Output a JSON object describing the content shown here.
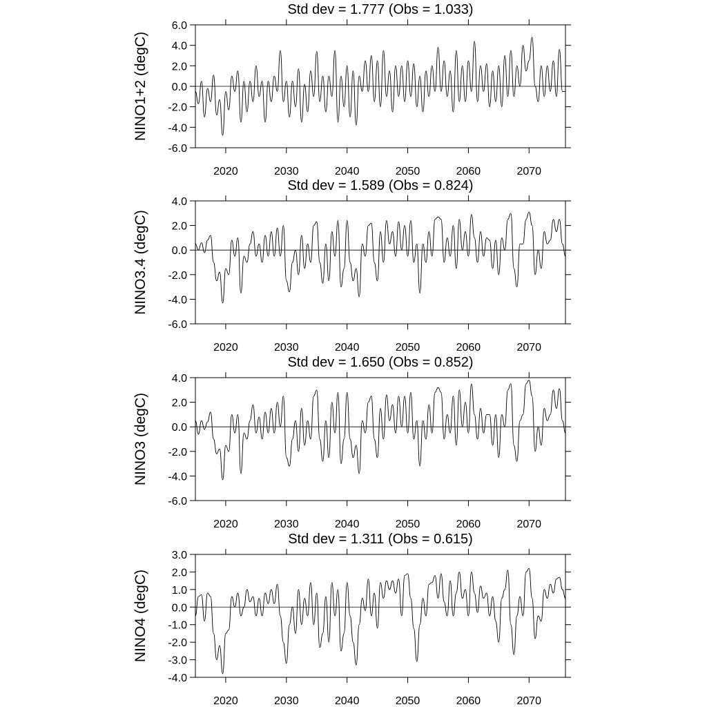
{
  "chart_data": [
    {
      "type": "line",
      "title": "Std dev = 1.777 (Obs = 1.033)",
      "ylabel": "NINO1+2 (degC)",
      "color": "#000000",
      "hline": 0,
      "xlim": [
        2015,
        2076
      ],
      "xticks": [
        2020,
        2030,
        2040,
        2050,
        2060,
        2070
      ],
      "ylim": [
        -6,
        6
      ],
      "yticks": [
        {
          "value": -6,
          "label": "-6.0"
        },
        {
          "value": -4,
          "label": "-4.0"
        },
        {
          "value": -2,
          "label": "-2.0"
        },
        {
          "value": 0,
          "label": "0.0"
        },
        {
          "value": 2,
          "label": "2.0"
        },
        {
          "value": 4,
          "label": "4.0"
        },
        {
          "value": 6,
          "label": "6.0"
        }
      ],
      "x": [
        2015,
        2015.5,
        2016,
        2016.5,
        2017,
        2017.5,
        2018,
        2018.5,
        2019,
        2019.5,
        2020,
        2020.5,
        2021,
        2021.5,
        2022,
        2022.5,
        2023,
        2023.5,
        2024,
        2024.5,
        2025,
        2025.5,
        2026,
        2026.5,
        2027,
        2027.5,
        2028,
        2028.5,
        2029,
        2029.5,
        2030,
        2030.5,
        2031,
        2031.5,
        2032,
        2032.5,
        2033,
        2033.5,
        2034,
        2034.5,
        2035,
        2035.5,
        2036,
        2036.5,
        2037,
        2037.5,
        2038,
        2038.5,
        2039,
        2039.5,
        2040,
        2040.5,
        2041,
        2041.5,
        2042,
        2042.5,
        2043,
        2043.5,
        2044,
        2044.5,
        2045,
        2045.5,
        2046,
        2046.5,
        2047,
        2047.5,
        2048,
        2048.5,
        2049,
        2049.5,
        2050,
        2050.5,
        2051,
        2051.5,
        2052,
        2052.5,
        2053,
        2053.5,
        2054,
        2054.5,
        2055,
        2055.5,
        2056,
        2056.5,
        2057,
        2057.5,
        2058,
        2058.5,
        2059,
        2059.5,
        2060,
        2060.5,
        2061,
        2061.5,
        2062,
        2062.5,
        2063,
        2063.5,
        2064,
        2064.5,
        2065,
        2065.5,
        2066,
        2066.5,
        2067,
        2067.5,
        2068,
        2068.5,
        2069,
        2069.5,
        2070,
        2070.5,
        2071,
        2071.5,
        2072,
        2072.5,
        2073,
        2073.5,
        2074,
        2074.5,
        2075,
        2075.5,
        2076
      ],
      "values": [
        -0.5,
        -1.7,
        0.5,
        -3.0,
        -0.2,
        -1.5,
        1.1,
        -2.8,
        -1.3,
        -4.8,
        -0.5,
        -2.3,
        1.0,
        -0.5,
        1.5,
        -3.5,
        0.5,
        -2.5,
        0.5,
        -1.5,
        2.0,
        -1.0,
        0.5,
        -3.5,
        0.5,
        -1.5,
        1.0,
        -0.5,
        3.5,
        -1.5,
        0.5,
        -3.0,
        0.5,
        -2.0,
        1.7,
        -3.5,
        0.2,
        -2.5,
        1.5,
        -1.0,
        3.4,
        -1.5,
        1.0,
        -2.5,
        1.0,
        -1.0,
        3.5,
        -3.5,
        1.0,
        -2.0,
        2.0,
        -3.0,
        1.5,
        -3.8,
        1.0,
        -0.5,
        2.5,
        -0.5,
        3.0,
        -1.5,
        2.5,
        -2.0,
        3.5,
        -1.0,
        1.5,
        -2.5,
        2.0,
        -1.0,
        2.0,
        -1.5,
        2.5,
        -1.0,
        2.2,
        -2.0,
        1.0,
        -2.5,
        1.5,
        -1.0,
        2.0,
        -0.5,
        3.8,
        -0.5,
        2.5,
        -1.0,
        1.5,
        -2.5,
        3.5,
        -1.5,
        2.0,
        -1.5,
        2.5,
        -0.5,
        4.4,
        -1.5,
        2.0,
        -0.5,
        2.2,
        -2.0,
        1.5,
        -1.5,
        2.0,
        -2.0,
        3.0,
        -1.0,
        3.5,
        -1.0,
        2.0,
        0.0,
        4.0,
        1.5,
        2.5,
        4.8,
        0.0,
        -1.5,
        2.0,
        -1.0,
        2.0,
        -0.5,
        2.5,
        -1.0,
        3.6,
        -0.5,
        -0.5
      ]
    },
    {
      "type": "line",
      "title": "Std dev = 1.589 (Obs = 0.824)",
      "ylabel": "NINO3.4 (degC)",
      "color": "#000000",
      "hline": 0,
      "xlim": [
        2015,
        2076
      ],
      "xticks": [
        2020,
        2030,
        2040,
        2050,
        2060,
        2070
      ],
      "ylim": [
        -6,
        4
      ],
      "yticks": [
        {
          "value": -6,
          "label": "-6.0"
        },
        {
          "value": -4,
          "label": "-4.0"
        },
        {
          "value": -2,
          "label": "-2.0"
        },
        {
          "value": 0,
          "label": "0.0"
        },
        {
          "value": 2,
          "label": "2.0"
        },
        {
          "value": 4,
          "label": "4.0"
        }
      ],
      "x": [
        2015,
        2015.5,
        2016,
        2016.5,
        2017,
        2017.5,
        2018,
        2018.5,
        2019,
        2019.5,
        2020,
        2020.5,
        2021,
        2021.5,
        2022,
        2022.5,
        2023,
        2023.5,
        2024,
        2024.5,
        2025,
        2025.5,
        2026,
        2026.5,
        2027,
        2027.5,
        2028,
        2028.5,
        2029,
        2029.5,
        2030,
        2030.5,
        2031,
        2031.5,
        2032,
        2032.5,
        2033,
        2033.5,
        2034,
        2034.5,
        2035,
        2035.5,
        2036,
        2036.5,
        2037,
        2037.5,
        2038,
        2038.5,
        2039,
        2039.5,
        2040,
        2040.5,
        2041,
        2041.5,
        2042,
        2042.5,
        2043,
        2043.5,
        2044,
        2044.5,
        2045,
        2045.5,
        2046,
        2046.5,
        2047,
        2047.5,
        2048,
        2048.5,
        2049,
        2049.5,
        2050,
        2050.5,
        2051,
        2051.5,
        2052,
        2052.5,
        2053,
        2053.5,
        2054,
        2054.5,
        2055,
        2055.5,
        2056,
        2056.5,
        2057,
        2057.5,
        2058,
        2058.5,
        2059,
        2059.5,
        2060,
        2060.5,
        2061,
        2061.5,
        2062,
        2062.5,
        2063,
        2063.5,
        2064,
        2064.5,
        2065,
        2065.5,
        2066,
        2066.5,
        2067,
        2067.5,
        2068,
        2068.5,
        2069,
        2069.5,
        2070,
        2070.5,
        2071,
        2071.5,
        2072,
        2072.5,
        2073,
        2073.5,
        2074,
        2074.5,
        2075,
        2075.5,
        2076
      ],
      "values": [
        0.5,
        0.0,
        0.6,
        -0.2,
        0.8,
        1.2,
        -1.0,
        -2.5,
        -1.8,
        -4.3,
        -1.5,
        -2.0,
        0.8,
        -0.5,
        1.0,
        -3.5,
        -0.5,
        -1.0,
        0.5,
        1.5,
        -0.5,
        0.5,
        -1.0,
        1.2,
        -0.5,
        1.5,
        -0.5,
        1.8,
        -0.5,
        2.0,
        -2.5,
        -3.4,
        -1.0,
        0.0,
        -2.0,
        1.2,
        -1.5,
        0.5,
        -1.0,
        2.0,
        2.3,
        -1.0,
        -2.7,
        0.5,
        -2.5,
        1.5,
        -0.5,
        2.4,
        -3.0,
        -1.5,
        2.4,
        -1.0,
        -2.5,
        -1.5,
        -3.8,
        0.5,
        -0.5,
        2.0,
        2.2,
        -1.0,
        -2.5,
        1.5,
        -1.0,
        2.4,
        0.5,
        1.5,
        -0.5,
        2.3,
        0.0,
        2.0,
        -0.5,
        2.4,
        -1.0,
        0.5,
        -3.5,
        0.5,
        -1.0,
        1.5,
        -0.5,
        2.5,
        2.7,
        2.5,
        -1.0,
        1.0,
        -0.5,
        2.0,
        -1.5,
        2.5,
        0.0,
        1.5,
        -0.5,
        2.9,
        1.0,
        -1.0,
        1.5,
        -0.5,
        1.0,
        0.8,
        -1.5,
        0.8,
        -2.0,
        1.0,
        0.0,
        2.5,
        3.0,
        -1.5,
        -3.0,
        0.5,
        0.5,
        2.5,
        3.1,
        2.0,
        -2.0,
        0.0,
        -1.5,
        1.5,
        0.5,
        0.8,
        2.5,
        1.5,
        2.5,
        0.5,
        -0.5
      ]
    },
    {
      "type": "line",
      "title": "Std dev = 1.650 (Obs = 0.852)",
      "ylabel": "NINO3 (degC)",
      "color": "#000000",
      "hline": 0,
      "xlim": [
        2015,
        2076
      ],
      "xticks": [
        2020,
        2030,
        2040,
        2050,
        2060,
        2070
      ],
      "ylim": [
        -6,
        4
      ],
      "yticks": [
        {
          "value": -6,
          "label": "-6.0"
        },
        {
          "value": -4,
          "label": "-4.0"
        },
        {
          "value": -2,
          "label": "-2.0"
        },
        {
          "value": 0,
          "label": "0.0"
        },
        {
          "value": 2,
          "label": "2.0"
        },
        {
          "value": 4,
          "label": "4.0"
        }
      ],
      "x": [
        2015,
        2015.5,
        2016,
        2016.5,
        2017,
        2017.5,
        2018,
        2018.5,
        2019,
        2019.5,
        2020,
        2020.5,
        2021,
        2021.5,
        2022,
        2022.5,
        2023,
        2023.5,
        2024,
        2024.5,
        2025,
        2025.5,
        2026,
        2026.5,
        2027,
        2027.5,
        2028,
        2028.5,
        2029,
        2029.5,
        2030,
        2030.5,
        2031,
        2031.5,
        2032,
        2032.5,
        2033,
        2033.5,
        2034,
        2034.5,
        2035,
        2035.5,
        2036,
        2036.5,
        2037,
        2037.5,
        2038,
        2038.5,
        2039,
        2039.5,
        2040,
        2040.5,
        2041,
        2041.5,
        2042,
        2042.5,
        2043,
        2043.5,
        2044,
        2044.5,
        2045,
        2045.5,
        2046,
        2046.5,
        2047,
        2047.5,
        2048,
        2048.5,
        2049,
        2049.5,
        2050,
        2050.5,
        2051,
        2051.5,
        2052,
        2052.5,
        2053,
        2053.5,
        2054,
        2054.5,
        2055,
        2055.5,
        2056,
        2056.5,
        2057,
        2057.5,
        2058,
        2058.5,
        2059,
        2059.5,
        2060,
        2060.5,
        2061,
        2061.5,
        2062,
        2062.5,
        2063,
        2063.5,
        2064,
        2064.5,
        2065,
        2065.5,
        2066,
        2066.5,
        2067,
        2067.5,
        2068,
        2068.5,
        2069,
        2069.5,
        2070,
        2070.5,
        2071,
        2071.5,
        2072,
        2072.5,
        2073,
        2073.5,
        2074,
        2074.5,
        2075,
        2075.5,
        2076
      ],
      "values": [
        0.5,
        -0.6,
        0.5,
        -0.2,
        0.4,
        1.2,
        -1.0,
        -2.2,
        -1.8,
        -4.3,
        -1.5,
        -2.0,
        1.0,
        -0.5,
        1.0,
        -3.8,
        -0.5,
        -1.0,
        0.5,
        1.8,
        -0.5,
        0.8,
        -1.0,
        1.2,
        -0.5,
        1.5,
        -0.5,
        2.0,
        0.0,
        2.5,
        -2.5,
        -3.2,
        -1.0,
        0.5,
        -2.0,
        1.5,
        -1.5,
        0.5,
        -1.0,
        2.5,
        3.0,
        -1.0,
        -2.8,
        0.5,
        -2.5,
        2.0,
        -0.5,
        2.8,
        -3.0,
        -1.0,
        2.8,
        -1.0,
        -2.5,
        -1.5,
        -3.8,
        0.5,
        -0.5,
        2.0,
        2.5,
        -1.0,
        -2.5,
        1.5,
        -1.0,
        2.6,
        0.5,
        1.8,
        -0.5,
        2.5,
        0.0,
        2.5,
        -0.5,
        2.8,
        -1.0,
        0.5,
        -3.2,
        0.5,
        -1.0,
        1.8,
        -0.5,
        2.8,
        3.2,
        2.8,
        -1.0,
        1.0,
        -0.5,
        2.5,
        -1.5,
        3.0,
        0.0,
        2.0,
        -0.5,
        3.5,
        1.0,
        -1.0,
        1.5,
        -0.5,
        1.0,
        1.0,
        -1.5,
        1.0,
        -2.5,
        1.0,
        0.0,
        3.0,
        3.5,
        -1.5,
        -2.8,
        0.5,
        1.0,
        3.5,
        3.8,
        2.5,
        -2.0,
        0.0,
        -1.5,
        1.5,
        0.5,
        1.0,
        3.0,
        1.5,
        3.1,
        0.5,
        -0.5
      ]
    },
    {
      "type": "line",
      "title": "Std dev = 1.311 (Obs = 0.615)",
      "ylabel": "NINO4 (degC)",
      "color": "#000000",
      "hline": 0,
      "xlim": [
        2015,
        2076
      ],
      "xticks": [
        2020,
        2030,
        2040,
        2050,
        2060,
        2070
      ],
      "ylim": [
        -4,
        3
      ],
      "yticks": [
        {
          "value": -4,
          "label": "-4.0"
        },
        {
          "value": -3,
          "label": "-3.0"
        },
        {
          "value": -2,
          "label": "-2.0"
        },
        {
          "value": -1,
          "label": "-1.0"
        },
        {
          "value": 0,
          "label": "0.0"
        },
        {
          "value": 1,
          "label": "1.0"
        },
        {
          "value": 2,
          "label": "2.0"
        },
        {
          "value": 3,
          "label": "3.0"
        }
      ],
      "x": [
        2015,
        2015.5,
        2016,
        2016.5,
        2017,
        2017.5,
        2018,
        2018.5,
        2019,
        2019.5,
        2020,
        2020.5,
        2021,
        2021.5,
        2022,
        2022.5,
        2023,
        2023.5,
        2024,
        2024.5,
        2025,
        2025.5,
        2026,
        2026.5,
        2027,
        2027.5,
        2028,
        2028.5,
        2029,
        2029.5,
        2030,
        2030.5,
        2031,
        2031.5,
        2032,
        2032.5,
        2033,
        2033.5,
        2034,
        2034.5,
        2035,
        2035.5,
        2036,
        2036.5,
        2037,
        2037.5,
        2038,
        2038.5,
        2039,
        2039.5,
        2040,
        2040.5,
        2041,
        2041.5,
        2042,
        2042.5,
        2043,
        2043.5,
        2044,
        2044.5,
        2045,
        2045.5,
        2046,
        2046.5,
        2047,
        2047.5,
        2048,
        2048.5,
        2049,
        2049.5,
        2050,
        2050.5,
        2051,
        2051.5,
        2052,
        2052.5,
        2053,
        2053.5,
        2054,
        2054.5,
        2055,
        2055.5,
        2056,
        2056.5,
        2057,
        2057.5,
        2058,
        2058.5,
        2059,
        2059.5,
        2060,
        2060.5,
        2061,
        2061.5,
        2062,
        2062.5,
        2063,
        2063.5,
        2064,
        2064.5,
        2065,
        2065.5,
        2066,
        2066.5,
        2067,
        2067.5,
        2068,
        2068.5,
        2069,
        2069.5,
        2070,
        2070.5,
        2071,
        2071.5,
        2072,
        2072.5,
        2073,
        2073.5,
        2074,
        2074.5,
        2075,
        2075.5,
        2076
      ],
      "values": [
        -0.5,
        0.6,
        0.7,
        -0.8,
        0.8,
        0.6,
        -1.5,
        -3.0,
        -2.2,
        -3.8,
        -1.5,
        -1.3,
        0.6,
        0.0,
        0.8,
        -0.5,
        0.0,
        1.0,
        0.3,
        0.6,
        -0.5,
        0.5,
        -0.5,
        0.8,
        0.2,
        1.0,
        0.2,
        1.3,
        -0.5,
        -2.0,
        -3.2,
        -1.0,
        0.0,
        -1.5,
        1.0,
        -1.0,
        0.5,
        -0.5,
        1.4,
        -1.0,
        0.8,
        -2.3,
        -1.5,
        0.6,
        -2.0,
        1.4,
        -0.5,
        1.0,
        -2.5,
        -1.5,
        1.4,
        -0.5,
        -2.0,
        -3.3,
        -1.0,
        0.5,
        -0.2,
        1.6,
        -0.5,
        0.8,
        -1.2,
        1.4,
        0.5,
        1.5,
        1.0,
        1.5,
        0.8,
        1.6,
        -0.5,
        1.8,
        1.9,
        0.5,
        -1.2,
        -3.1,
        -1.0,
        0.5,
        -0.5,
        1.3,
        1.4,
        1.8,
        0.5,
        1.9,
        0.3,
        -0.5,
        1.5,
        -0.5,
        0.8,
        2.0,
        0.5,
        1.0,
        -0.5,
        2.0,
        0.8,
        -0.3,
        1.2,
        0.5,
        0.8,
        -0.5,
        0.6,
        -0.8,
        -2.0,
        0.5,
        1.0,
        2.1,
        -1.0,
        -2.7,
        -0.5,
        0.6,
        -0.5,
        2.0,
        2.2,
        0.5,
        -1.8,
        -0.5,
        -0.8,
        1.0,
        0.5,
        1.3,
        0.8,
        1.6,
        1.7,
        1.0,
        0.5
      ]
    }
  ]
}
